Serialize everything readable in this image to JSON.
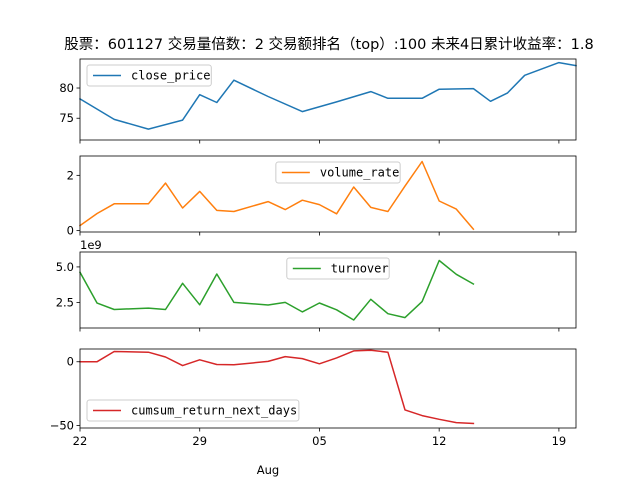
{
  "chart_data": {
    "type": "line",
    "title": "股票：601127  交易量倍数：2 交易额排名（top）:100 未来4日累计收益率：1.8",
    "xlabel": "Aug",
    "x": [
      "2020-07-22",
      "2020-07-23",
      "2020-07-24",
      "2020-07-25",
      "2020-07-26",
      "2020-07-27",
      "2020-07-28",
      "2020-07-29",
      "2020-07-30",
      "2020-07-31",
      "2020-08-01",
      "2020-08-02",
      "2020-08-03",
      "2020-08-04",
      "2020-08-05",
      "2020-08-06",
      "2020-08-07",
      "2020-08-08",
      "2020-08-09",
      "2020-08-10",
      "2020-08-11",
      "2020-08-12",
      "2020-08-13",
      "2020-08-14",
      "2020-08-15",
      "2020-08-16",
      "2020-08-17",
      "2020-08-18",
      "2020-08-19",
      "2020-08-20"
    ],
    "x_ticks": [
      {
        "date": "2020-07-22",
        "label": "22"
      },
      {
        "date": "2020-07-29",
        "label": "29"
      },
      {
        "date": "2020-08-05",
        "label": "05"
      },
      {
        "date": "2020-08-12",
        "label": "12"
      },
      {
        "date": "2020-08-19",
        "label": "19"
      }
    ],
    "panels": [
      {
        "name": "close_price",
        "color": "#1f77b4",
        "legend": "upper left",
        "ylim": [
          71.4,
          84.8
        ],
        "yticks": [
          75,
          80
        ],
        "ytick_labels": [
          "75",
          "80"
        ],
        "offset_label": "",
        "points": [
          [
            "2020-07-22",
            78.2
          ],
          [
            "2020-07-24",
            74.8
          ],
          [
            "2020-07-26",
            73.2
          ],
          [
            "2020-07-28",
            74.7
          ],
          [
            "2020-07-29",
            78.9
          ],
          [
            "2020-07-30",
            77.6
          ],
          [
            "2020-07-31",
            81.3
          ],
          [
            "2020-08-02",
            78.6
          ],
          [
            "2020-08-04",
            76.1
          ],
          [
            "2020-08-06",
            77.7
          ],
          [
            "2020-08-08",
            79.4
          ],
          [
            "2020-08-09",
            78.3
          ],
          [
            "2020-08-11",
            78.3
          ],
          [
            "2020-08-12",
            79.8
          ],
          [
            "2020-08-14",
            79.9
          ],
          [
            "2020-08-15",
            77.8
          ],
          [
            "2020-08-16",
            79.2
          ],
          [
            "2020-08-17",
            82.1
          ],
          [
            "2020-08-19",
            84.2
          ],
          [
            "2020-08-20",
            83.7
          ]
        ]
      },
      {
        "name": "volume_rate",
        "color": "#ff7f0e",
        "legend": "upper center",
        "ylim": [
          -0.05,
          2.7
        ],
        "yticks": [
          0,
          2
        ],
        "ytick_labels": [
          "0",
          "2"
        ],
        "offset_label": "",
        "points": [
          [
            "2020-07-22",
            0.18
          ],
          [
            "2020-07-23",
            0.62
          ],
          [
            "2020-07-24",
            0.97
          ],
          [
            "2020-07-26",
            0.97
          ],
          [
            "2020-07-27",
            1.72
          ],
          [
            "2020-07-28",
            0.82
          ],
          [
            "2020-07-29",
            1.42
          ],
          [
            "2020-07-30",
            0.73
          ],
          [
            "2020-07-31",
            0.69
          ],
          [
            "2020-08-02",
            1.05
          ],
          [
            "2020-08-03",
            0.76
          ],
          [
            "2020-08-04",
            1.1
          ],
          [
            "2020-08-05",
            0.94
          ],
          [
            "2020-08-06",
            0.61
          ],
          [
            "2020-08-07",
            1.58
          ],
          [
            "2020-08-08",
            0.84
          ],
          [
            "2020-08-09",
            0.69
          ],
          [
            "2020-08-10",
            1.61
          ],
          [
            "2020-08-11",
            2.5
          ],
          [
            "2020-08-12",
            1.07
          ],
          [
            "2020-08-13",
            0.78
          ],
          [
            "2020-08-14",
            0.05
          ]
        ]
      },
      {
        "name": "turnover",
        "color": "#2ca02c",
        "legend": "upper center",
        "ylim": [
          0.7,
          6.05
        ],
        "yticks": [
          2.5,
          5.0
        ],
        "ytick_labels": [
          "2.5",
          "5.0"
        ],
        "offset_label": "1e9",
        "points": [
          [
            "2020-07-22",
            4.62
          ],
          [
            "2020-07-23",
            2.45
          ],
          [
            "2020-07-24",
            2.0
          ],
          [
            "2020-07-26",
            2.1
          ],
          [
            "2020-07-27",
            2.0
          ],
          [
            "2020-07-28",
            3.85
          ],
          [
            "2020-07-29",
            2.33
          ],
          [
            "2020-07-30",
            4.5
          ],
          [
            "2020-07-31",
            2.5
          ],
          [
            "2020-08-02",
            2.32
          ],
          [
            "2020-08-03",
            2.5
          ],
          [
            "2020-08-04",
            1.83
          ],
          [
            "2020-08-05",
            2.46
          ],
          [
            "2020-08-06",
            1.98
          ],
          [
            "2020-08-07",
            1.26
          ],
          [
            "2020-08-08",
            2.72
          ],
          [
            "2020-08-09",
            1.71
          ],
          [
            "2020-08-10",
            1.43
          ],
          [
            "2020-08-11",
            2.56
          ],
          [
            "2020-08-12",
            5.45
          ],
          [
            "2020-08-13",
            4.48
          ],
          [
            "2020-08-14",
            3.8
          ]
        ]
      },
      {
        "name": "cumsum_return_next_days",
        "color": "#d62728",
        "legend": "lower left",
        "ylim": [
          -52,
          10
        ],
        "yticks": [
          -50,
          0
        ],
        "ytick_labels": [
          "−50",
          "0"
        ],
        "offset_label": "",
        "points": [
          [
            "2020-07-22",
            0.0
          ],
          [
            "2020-07-23",
            0.0
          ],
          [
            "2020-07-24",
            8.0
          ],
          [
            "2020-07-26",
            7.5
          ],
          [
            "2020-07-27",
            3.7
          ],
          [
            "2020-07-28",
            -3.0
          ],
          [
            "2020-07-29",
            1.5
          ],
          [
            "2020-07-30",
            -2.2
          ],
          [
            "2020-07-31",
            -2.4
          ],
          [
            "2020-08-02",
            0.3
          ],
          [
            "2020-08-03",
            4.0
          ],
          [
            "2020-08-04",
            2.5
          ],
          [
            "2020-08-05",
            -1.6
          ],
          [
            "2020-08-06",
            3.0
          ],
          [
            "2020-08-07",
            8.5
          ],
          [
            "2020-08-08",
            9.0
          ],
          [
            "2020-08-09",
            7.5
          ],
          [
            "2020-08-10",
            -37.8
          ],
          [
            "2020-08-11",
            -42.3
          ],
          [
            "2020-08-12",
            -45.2
          ],
          [
            "2020-08-13",
            -47.8
          ],
          [
            "2020-08-14",
            -48.5
          ]
        ]
      }
    ]
  }
}
